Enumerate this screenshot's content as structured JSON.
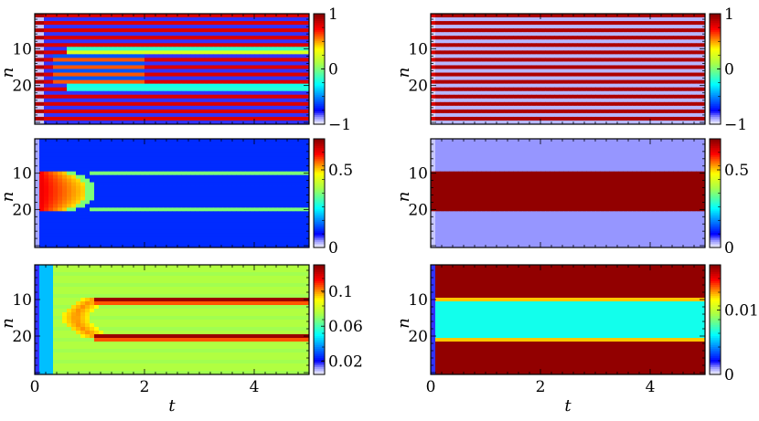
{
  "chart_data": [
    {
      "type": "heatmap",
      "panel": "top-left",
      "xlabel": "",
      "ylabel": "n",
      "xlim": [
        0,
        5
      ],
      "ylim": [
        30,
        1
      ],
      "yticks": [
        "10",
        "20"
      ],
      "xticks": [],
      "colorbar": {
        "range": [
          -1,
          1
        ],
        "ticks": [
          "1",
          "0",
          "−1"
        ],
        "tick_values": [
          1,
          0,
          -1
        ]
      },
      "pattern": "alternating stripes red/blue per site; sites 10-11 and 20-21 relax toward yellow/cyan"
    },
    {
      "type": "heatmap",
      "panel": "top-right",
      "xlabel": "",
      "ylabel": "n",
      "xlim": [
        0,
        5
      ],
      "ylim": [
        30,
        1
      ],
      "yticks": [
        "10",
        "20"
      ],
      "xticks": [],
      "colorbar": {
        "range": [
          -1,
          1
        ],
        "ticks": [
          "1",
          "0",
          "−1"
        ],
        "tick_values": [
          1,
          0,
          -1
        ]
      },
      "pattern": "alternating stripes dark red/light lavender per site, constant in t"
    },
    {
      "type": "heatmap",
      "panel": "middle-left",
      "xlabel": "",
      "ylabel": "n",
      "xlim": [
        0,
        5
      ],
      "ylim": [
        30,
        1
      ],
      "yticks": [
        "10",
        "20"
      ],
      "xticks": [],
      "colorbar": {
        "range": [
          0,
          0.7
        ],
        "ticks": [
          "0.5",
          "0"
        ],
        "tick_values": [
          0.5,
          0
        ]
      },
      "pattern": "sites 10-20 high (red) for t<1 then decay to blue; sites 10 and 20 green"
    },
    {
      "type": "heatmap",
      "panel": "middle-right",
      "xlabel": "",
      "ylabel": "n",
      "xlim": [
        0,
        5
      ],
      "ylim": [
        30,
        1
      ],
      "yticks": [
        "10",
        "20"
      ],
      "xticks": [],
      "colorbar": {
        "range": [
          0,
          0.7
        ],
        "ticks": [
          "0.5",
          "0"
        ],
        "tick_values": [
          0.5,
          0
        ]
      },
      "pattern": "sites 10-20 dark red, others lavender"
    },
    {
      "type": "heatmap",
      "panel": "bottom-left",
      "xlabel": "t",
      "ylabel": "n",
      "xlim": [
        0,
        5
      ],
      "ylim": [
        30,
        1
      ],
      "yticks": [
        "10",
        "20"
      ],
      "xticks": [
        "0",
        "2",
        "4"
      ],
      "colorbar": {
        "range": [
          0.005,
          0.13
        ],
        "ticks": [
          "0.1",
          "0.06",
          "0.02"
        ],
        "tick_values": [
          0.1,
          0.06,
          0.02
        ]
      },
      "pattern": "background ~0.07; arc peaking near t=1 in sites 10-20; sites 10-11 and 20-21 dark red after t>1"
    },
    {
      "type": "heatmap",
      "panel": "bottom-right",
      "xlabel": "t",
      "ylabel": "n",
      "xlim": [
        0,
        5
      ],
      "ylim": [
        30,
        1
      ],
      "yticks": [
        "10",
        "20"
      ],
      "xticks": [
        "0",
        "2",
        "4"
      ],
      "colorbar": {
        "range": [
          0,
          0.017
        ],
        "ticks": [
          "0.01",
          "0"
        ],
        "tick_values": [
          0.01,
          0
        ]
      },
      "pattern": "sites outside 10-21 dark red, sites 11-20 cyan, boundary orange"
    }
  ]
}
